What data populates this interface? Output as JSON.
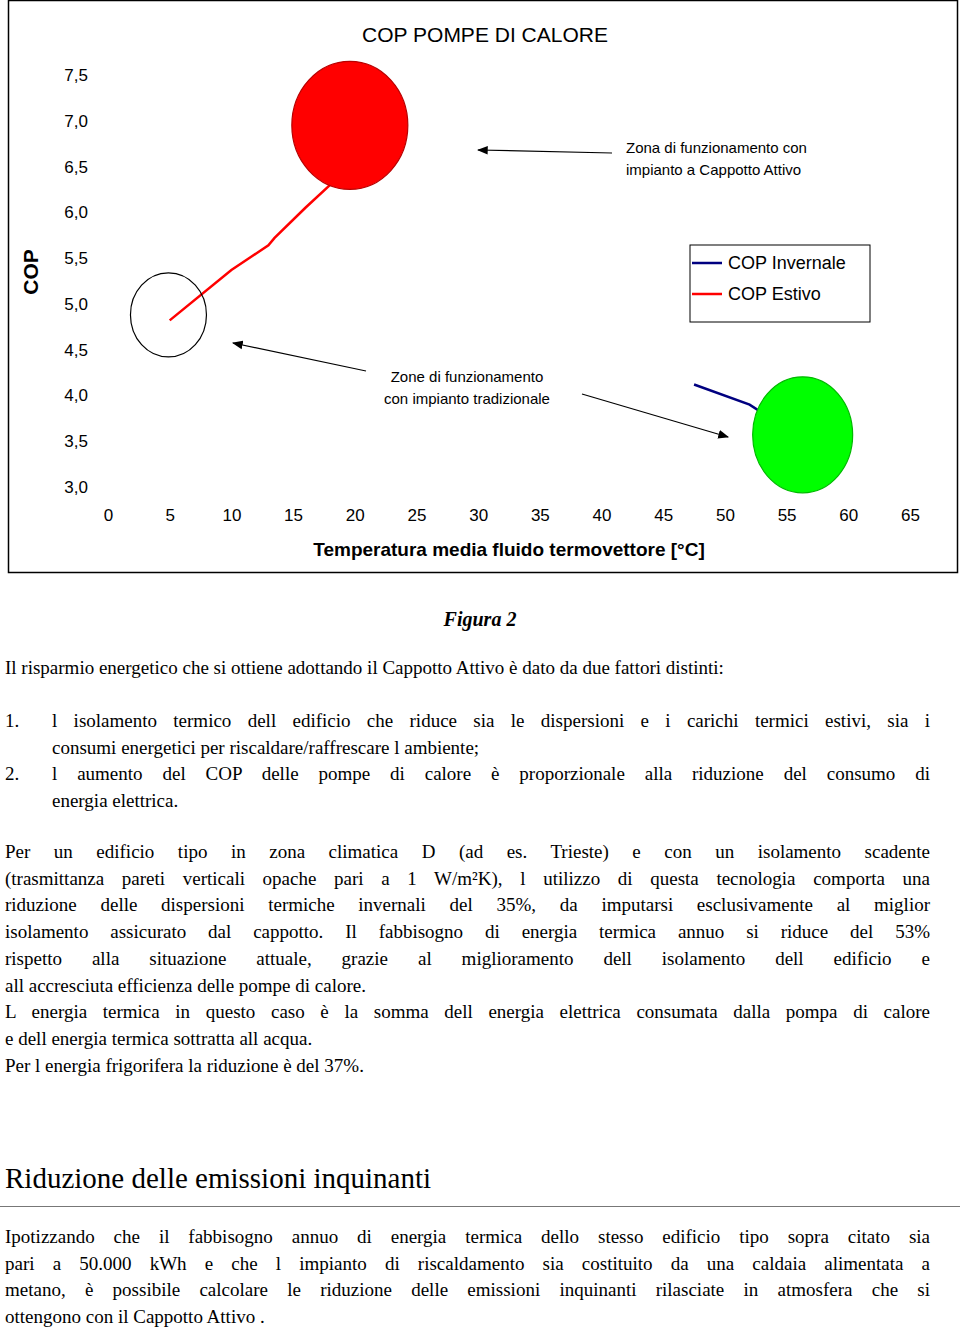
{
  "chart_data": {
    "type": "line",
    "title": "COP POMPE DI CALORE",
    "y_label": "COP",
    "x_label": "Temperatura media fluido termovettore [°C]",
    "xlim": [
      0,
      65
    ],
    "xticks": [
      0,
      5,
      10,
      15,
      20,
      25,
      30,
      35,
      40,
      45,
      50,
      55,
      60,
      65
    ],
    "ylim": [
      3.0,
      7.5
    ],
    "yticks": [
      {
        "value": 3.0,
        "label": "3,0"
      },
      {
        "value": 3.5,
        "label": "3,5"
      },
      {
        "value": 4.0,
        "label": "4,0"
      },
      {
        "value": 4.5,
        "label": "4,5"
      },
      {
        "value": 5.0,
        "label": "5,0"
      },
      {
        "value": 5.5,
        "label": "5,5"
      },
      {
        "value": 6.0,
        "label": "6,0"
      },
      {
        "value": 6.5,
        "label": "6,5"
      },
      {
        "value": 7.0,
        "label": "7,0"
      },
      {
        "value": 7.5,
        "label": "7,5"
      }
    ],
    "grid": false,
    "legend": "upper right",
    "series": [
      {
        "name": "COP Invernale",
        "color": "#000080",
        "x": [
          47.5,
          52,
          56
        ],
        "values": [
          4.12,
          3.9,
          3.55
        ]
      },
      {
        "name": "COP Estivo",
        "color": "#ff0000",
        "x": [
          5,
          10,
          13,
          13.5,
          16,
          18,
          20
        ],
        "values": [
          4.82,
          5.37,
          5.64,
          5.72,
          6.05,
          6.3,
          6.6
        ]
      }
    ],
    "zones": [
      {
        "x": 19.6,
        "y": 6.95,
        "color": "#ff0000"
      },
      {
        "x": 56.3,
        "y": 3.57,
        "color": "#00ff00"
      },
      {
        "x": 4.9,
        "y": 4.88,
        "color": null
      }
    ],
    "annotations": [
      {
        "lines": [
          "Zona di funzionamento con",
          "impianto a Cappotto Attivo"
        ]
      },
      {
        "lines": [
          "Zone di funzionamento",
          "con impianto tradizionale"
        ]
      }
    ]
  },
  "document": {
    "caption": "Figura 2",
    "intro": "Il risparmio energetico che si ottiene adottando il  Cappotto Attivo  è dato da due fattori distinti:",
    "list": [
      {
        "number": "1.",
        "lines": [
          "l isolamento termico dell edificio che riduce sia le dispersioni e i carichi termici estivi, sia i",
          "consumi energetici per riscaldare/raffrescare l ambiente;"
        ]
      },
      {
        "number": "2.",
        "lines": [
          "l aumento del COP delle pompe di calore è proporzionale alla riduzione del consumo di",
          "energia elettrica."
        ]
      }
    ],
    "body": [
      [
        "Per un  edificio tipo  in zona climatica D (ad es. Trieste) e con un isolamento scadente",
        "(trasmittanza pareti verticali opache pari a 1 W/m²K), l utilizzo di questa tecnologia comporta una",
        "riduzione delle dispersioni termiche invernali del 35%, da imputarsi esclusivamente al miglior",
        "isolamento assicurato dal cappotto. Il fabbisogno di energia termica annuo si riduce del 53%",
        "rispetto alla situazione attuale, grazie al miglioramento dell isolamento dell edificio e",
        "all accresciuta efficienza delle pompe di calore."
      ],
      [
        "L energia termica in questo caso è la somma dell energia elettrica consumata dalla pompa di calore",
        "e dell energia termica sottratta all acqua."
      ],
      [
        "Per l energia frigorifera la riduzione è del 37%."
      ]
    ],
    "heading": "Riduzione delle emissioni inquinanti",
    "closing": [
      "Ipotizzando che il fabbisogno annuo di energia termica dello stesso  edificio tipo  sopra citato sia",
      "pari a 50.000 kWh e che l impianto di riscaldamento sia costituito da una caldaia alimentata a",
      "metano, è possibile calcolare le riduzione delle emissioni inquinanti rilasciate in atmosfera che si",
      "ottengono con il  Cappotto Attivo ."
    ]
  }
}
